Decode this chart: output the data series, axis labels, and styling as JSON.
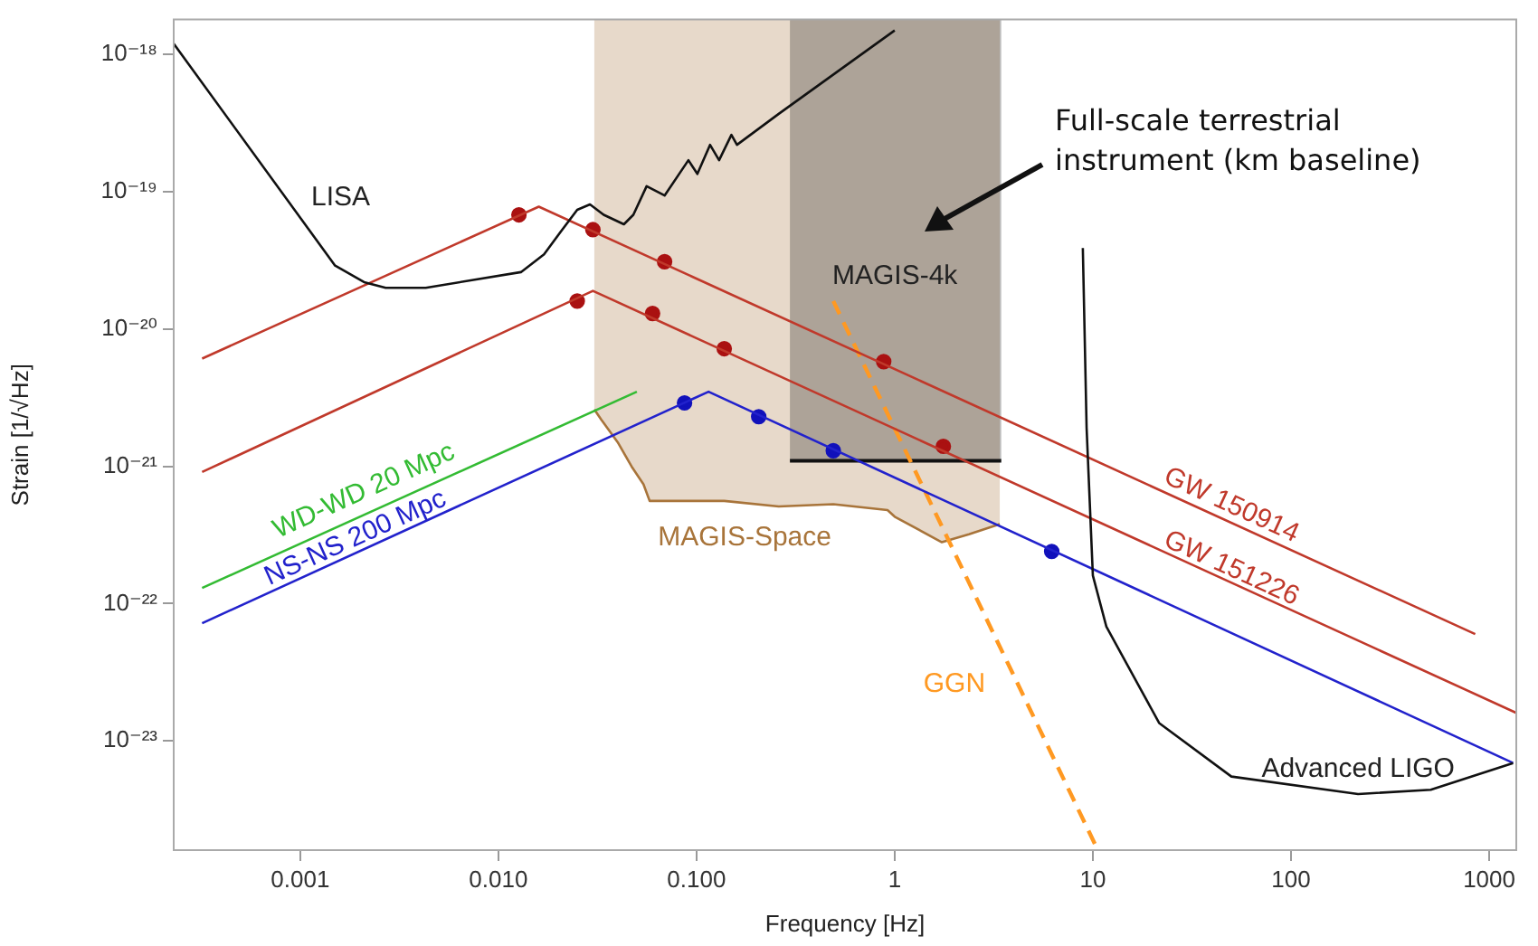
{
  "chart_data": {
    "type": "line",
    "xlabel": "Frequency [Hz]",
    "ylabel": "Strain [1/√Hz]",
    "log": "xy",
    "xlim": [
      0.00023,
      1370
    ],
    "ylim": [
      1.6e-24,
      1.8e-18
    ],
    "xticks": [
      {
        "value": 0.001,
        "label": "0.001"
      },
      {
        "value": 0.01,
        "label": "0.010"
      },
      {
        "value": 0.1,
        "label": "0.100"
      },
      1,
      10,
      100,
      1000
    ],
    "yticks": [
      {
        "value": 1e-23,
        "label": "10⁻²³"
      },
      {
        "value": 1e-22,
        "label": "10⁻²²"
      },
      {
        "value": 1e-21,
        "label": "10⁻²¹"
      },
      {
        "value": 1e-20,
        "label": "10⁻²⁰"
      },
      {
        "value": 1e-19,
        "label": "10⁻¹⁹"
      },
      {
        "value": 1e-18,
        "label": "10⁻¹⁸"
      }
    ],
    "grid": false,
    "legend": false,
    "marker": "none",
    "line_style": "solid",
    "annotations": [
      "Full-scale terrestrial instrument (km baseline)",
      "MAGIS-4k"
    ],
    "series": [
      {
        "name": "LISA",
        "color": "#111111",
        "x": [
          0.00023,
          0.0015,
          0.0021,
          0.0027,
          0.0043,
          0.013,
          0.017,
          0.021,
          0.025,
          0.029,
          0.034,
          0.043,
          0.048,
          0.056,
          0.069,
          0.091,
          0.101,
          0.117,
          0.13,
          0.15,
          0.16,
          0.26,
          1.0
        ],
        "values": [
          1.2e-18,
          2.9e-20,
          2.2e-20,
          2e-20,
          2e-20,
          2.6e-20,
          3.5e-20,
          5.3e-20,
          7.4e-20,
          8.1e-20,
          6.8e-20,
          5.8e-20,
          6.8e-20,
          1.1e-19,
          9.4e-20,
          1.7e-19,
          1.35e-19,
          2.2e-19,
          1.7e-19,
          2.6e-19,
          2.2e-19,
          3.7e-19,
          1.5e-18
        ]
      },
      {
        "name": "Advanced LIGO",
        "color": "#111111",
        "x": [
          8.9,
          9.3,
          10,
          11.7,
          21.6,
          50,
          218,
          507,
          1320
        ],
        "values": [
          3.9e-20,
          1.9e-21,
          1.6e-22,
          6.8e-23,
          1.35e-23,
          5.5e-24,
          4.1e-24,
          4.4e-24,
          6.9e-24
        ]
      },
      {
        "name": "GW 150914",
        "color": "#c0392b",
        "x": [
          0.00032,
          0.016,
          850
        ],
        "values": [
          6.1e-21,
          7.8e-20,
          6e-23
        ]
      },
      {
        "name": "GW 151226",
        "color": "#c0392b",
        "x": [
          0.00032,
          0.03,
          1370
        ],
        "values": [
          9.1e-22,
          1.9e-20,
          1.6e-23
        ]
      },
      {
        "name": "WD-WD 20 Mpc",
        "color": "#33bb33",
        "x": [
          0.00032,
          0.05
        ],
        "values": [
          1.3e-22,
          3.5e-21
        ]
      },
      {
        "name": "NS-NS 200 Mpc",
        "color": "#2222cc",
        "x": [
          0.00032,
          0.115,
          1320
        ],
        "values": [
          7.2e-23,
          3.5e-21,
          6.9e-24
        ]
      },
      {
        "name": "GGN",
        "color": "#ff9922",
        "line_style": "dashed",
        "x": [
          0.49,
          10.6
        ],
        "values": [
          1.6e-20,
          1.6e-24
        ]
      },
      {
        "name": "MAGIS-Space",
        "color": "#a8743a",
        "x": [
          0.0305,
          0.033,
          0.04,
          0.047,
          0.054,
          0.058,
          0.138,
          0.26,
          0.49,
          0.92,
          1.0,
          1.73,
          2.37,
          3.39
        ],
        "values": [
          2.6e-21,
          2.2e-21,
          1.5e-21,
          1e-21,
          7.4e-22,
          5.6e-22,
          5.6e-22,
          5.1e-22,
          5.3e-22,
          4.8e-22,
          4.3e-22,
          2.8e-22,
          3.2e-22,
          3.8e-22
        ],
        "lower": [
          2.6e-21,
          2.2e-21,
          1.5e-21,
          1e-21,
          7.4e-22,
          5.6e-22,
          5.6e-22,
          5.1e-22,
          5.3e-22,
          4.8e-22,
          4.3e-22,
          2.8e-22,
          3.2e-22,
          3.8e-22
        ],
        "upper": [
          1.8e-18,
          1.8e-18,
          1.8e-18,
          1.8e-18,
          1.8e-18,
          1.8e-18,
          1.8e-18,
          1.8e-18,
          1.8e-18,
          1.8e-18,
          1.8e-18,
          1.8e-18,
          1.8e-18,
          1.8e-18
        ]
      },
      {
        "color": "#111111",
        "x": [
          0.296,
          3.45
        ],
        "values": [
          1.1e-21,
          1.1e-21
        ],
        "lower": [
          1.1e-21,
          1.1e-21
        ],
        "upper": [
          1.8e-18,
          1.8e-18
        ]
      },
      {
        "type": "scatter",
        "marker": "circle",
        "color": "#aa1111",
        "x": [
          0.0127,
          0.03,
          0.069,
          0.88
        ],
        "values": [
          6.8e-20,
          5.3e-20,
          3.1e-20,
          5.8e-21
        ]
      },
      {
        "type": "scatter",
        "marker": "circle",
        "color": "#aa1111",
        "x": [
          0.025,
          0.06,
          0.138,
          1.76
        ],
        "values": [
          1.6e-20,
          1.3e-20,
          7.2e-21,
          1.4e-21
        ]
      },
      {
        "type": "scatter",
        "marker": "circle",
        "color": "#1111bb",
        "x": [
          0.087,
          0.206,
          0.49,
          6.2
        ],
        "values": [
          2.9e-21,
          2.3e-21,
          1.3e-21,
          2.4e-22
        ]
      }
    ]
  }
}
